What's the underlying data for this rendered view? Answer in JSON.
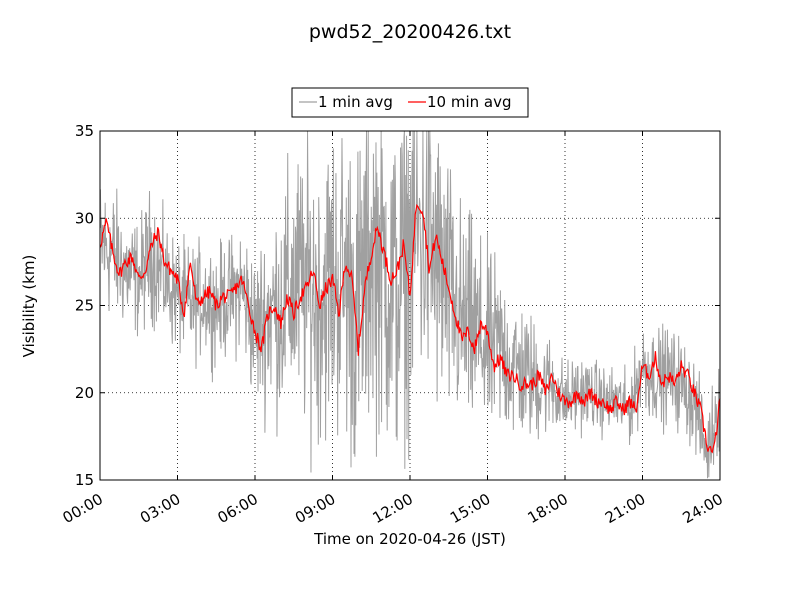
{
  "chart_data": {
    "type": "line",
    "title": "pwd52_20200426.txt",
    "xlabel": "Time on 2020-04-26 (JST)",
    "ylabel": "Visibility (km)",
    "xlim": [
      "00:00",
      "24:00"
    ],
    "ylim": [
      15,
      35
    ],
    "xticks": [
      "00:00",
      "03:00",
      "06:00",
      "09:00",
      "12:00",
      "15:00",
      "18:00",
      "21:00",
      "24:00"
    ],
    "yticks": [
      15,
      20,
      25,
      30,
      35
    ],
    "grid": true,
    "legend_position": "top-center",
    "series": [
      {
        "name": "1 min avg",
        "color": "#a0a0a0",
        "x": [
          "00:00",
          "00:30",
          "01:00",
          "01:30",
          "02:00",
          "02:30",
          "03:00",
          "03:30",
          "04:00",
          "04:30",
          "05:00",
          "05:30",
          "06:00",
          "06:30",
          "07:00",
          "07:30",
          "08:00",
          "08:30",
          "09:00",
          "09:30",
          "10:00",
          "10:30",
          "11:00",
          "11:30",
          "12:00",
          "12:30",
          "13:00",
          "13:30",
          "14:00",
          "14:30",
          "15:00",
          "15:30",
          "16:00",
          "16:30",
          "17:00",
          "17:30",
          "18:00",
          "18:30",
          "19:00",
          "19:30",
          "20:00",
          "20:30",
          "21:00",
          "21:30",
          "22:00",
          "22:30",
          "23:00",
          "23:30",
          "24:00"
        ],
        "y": [
          28.5,
          28.0,
          27.0,
          26.5,
          28.0,
          26.5,
          25.5,
          25.0,
          25.5,
          25.0,
          25.5,
          26.0,
          23.5,
          24.5,
          25.0,
          26.0,
          26.0,
          25.5,
          26.5,
          26.5,
          24.5,
          28.5,
          27.0,
          25.5,
          28.5,
          29.5,
          27.5,
          25.5,
          24.0,
          23.5,
          22.5,
          22.5,
          21.5,
          21.0,
          20.5,
          20.5,
          19.5,
          20.0,
          20.0,
          19.5,
          19.5,
          19.0,
          21.5,
          21.0,
          21.0,
          20.5,
          19.5,
          16.5,
          20.0
        ],
        "noise_amplitude": [
          3.5,
          3.5,
          3.0,
          3.0,
          3.5,
          3.0,
          3.0,
          3.0,
          3.0,
          3.0,
          3.0,
          3.5,
          4.0,
          5.0,
          6.0,
          7.0,
          7.5,
          7.5,
          8.0,
          8.5,
          9.0,
          9.0,
          9.0,
          9.0,
          9.0,
          9.0,
          8.0,
          7.0,
          6.0,
          5.5,
          5.0,
          4.5,
          4.0,
          3.5,
          3.0,
          2.5,
          2.0,
          2.0,
          1.8,
          1.8,
          1.8,
          1.8,
          2.5,
          2.5,
          2.5,
          2.5,
          2.5,
          1.8,
          3.0
        ]
      },
      {
        "name": "10 min avg",
        "color": "#ff0000",
        "x": [
          "00:00",
          "00:15",
          "00:30",
          "00:45",
          "01:00",
          "01:15",
          "01:30",
          "01:45",
          "02:00",
          "02:15",
          "02:30",
          "02:45",
          "03:00",
          "03:15",
          "03:30",
          "03:45",
          "04:00",
          "04:15",
          "04:30",
          "04:45",
          "05:00",
          "05:15",
          "05:30",
          "05:45",
          "06:00",
          "06:15",
          "06:30",
          "06:45",
          "07:00",
          "07:15",
          "07:30",
          "07:45",
          "08:00",
          "08:15",
          "08:30",
          "08:45",
          "09:00",
          "09:15",
          "09:30",
          "09:45",
          "10:00",
          "10:15",
          "10:30",
          "10:45",
          "11:00",
          "11:15",
          "11:30",
          "11:45",
          "12:00",
          "12:15",
          "12:30",
          "12:45",
          "13:00",
          "13:15",
          "13:30",
          "13:45",
          "14:00",
          "14:15",
          "14:30",
          "14:45",
          "15:00",
          "15:15",
          "15:30",
          "15:45",
          "16:00",
          "16:15",
          "16:30",
          "16:45",
          "17:00",
          "17:15",
          "17:30",
          "17:45",
          "18:00",
          "18:15",
          "18:30",
          "18:45",
          "19:00",
          "19:15",
          "19:30",
          "19:45",
          "20:00",
          "20:15",
          "20:30",
          "20:45",
          "21:00",
          "21:15",
          "21:30",
          "21:45",
          "22:00",
          "22:15",
          "22:30",
          "22:45",
          "23:00",
          "23:15",
          "23:30",
          "23:45",
          "24:00"
        ],
        "y": [
          28.5,
          29.8,
          28.0,
          26.8,
          27.5,
          27.8,
          26.5,
          27.0,
          28.5,
          29.2,
          27.5,
          27.0,
          26.5,
          24.5,
          27.5,
          25.0,
          25.5,
          25.8,
          25.0,
          25.5,
          25.5,
          26.0,
          26.5,
          25.0,
          23.5,
          22.5,
          24.5,
          25.0,
          24.0,
          25.5,
          24.5,
          25.5,
          26.0,
          27.0,
          25.0,
          26.0,
          26.5,
          24.5,
          27.5,
          26.5,
          22.5,
          26.0,
          28.0,
          29.5,
          28.0,
          26.5,
          27.0,
          28.5,
          25.5,
          31.0,
          30.5,
          27.0,
          29.0,
          27.5,
          26.0,
          24.5,
          23.0,
          23.5,
          22.5,
          24.0,
          23.5,
          21.5,
          22.0,
          21.0,
          21.0,
          20.5,
          20.5,
          20.5,
          21.0,
          20.0,
          21.0,
          20.0,
          19.5,
          19.5,
          20.0,
          19.5,
          20.0,
          19.5,
          19.5,
          19.0,
          19.5,
          19.0,
          19.5,
          19.0,
          21.5,
          21.0,
          22.0,
          20.5,
          21.0,
          20.5,
          21.5,
          21.0,
          20.0,
          19.0,
          17.0,
          16.5,
          19.5
        ]
      }
    ]
  }
}
